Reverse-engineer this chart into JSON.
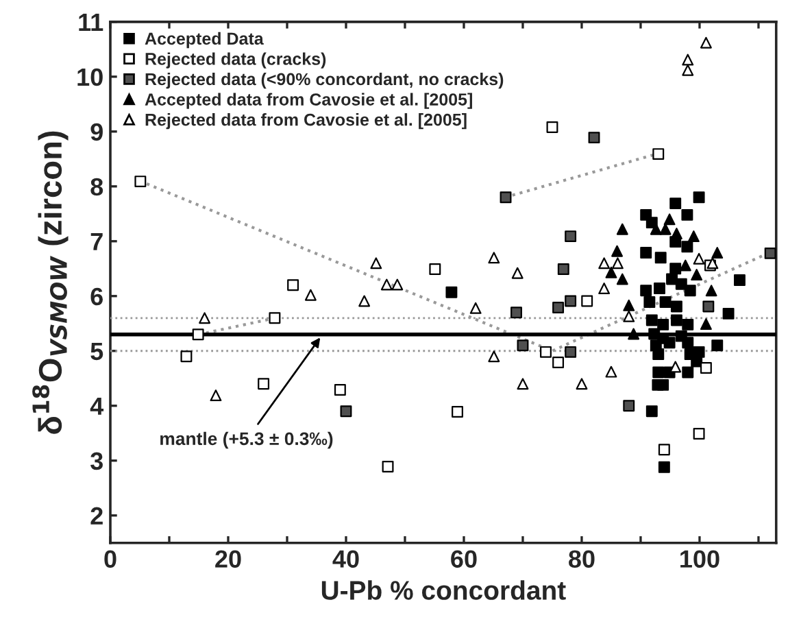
{
  "chart_data": {
    "type": "scatter",
    "xlabel": "U-Pb % concordant",
    "ylabel": "δ$^{18}$O$_{VSMOW}$ (zircon)",
    "xlim": [
      0,
      113
    ],
    "ylim": [
      1.5,
      11
    ],
    "xticks": [
      0,
      {
        "value": 10,
        "label": null
      },
      20,
      {
        "value": 30,
        "label": null
      },
      40,
      {
        "value": 50,
        "label": null
      },
      60,
      {
        "value": 70,
        "label": null
      },
      80,
      {
        "value": 90,
        "label": null
      },
      100,
      {
        "value": 110,
        "label": null
      }
    ],
    "yticks": [
      2,
      3,
      4,
      5,
      6,
      7,
      8,
      9,
      10,
      11
    ],
    "grid": false,
    "legend": "top left",
    "series": [
      {
        "name": "Accepted Data",
        "marker": "square",
        "color": "#000000",
        "x": [
          99.9,
          95.9,
          97.9,
          90.9,
          91.9,
          95.9,
          97.9,
          90.9,
          93.4,
          106.8,
          90.9,
          93.2,
          95.3,
          96.9,
          98.4,
          91.5,
          94.2,
          96.1,
          91.9,
          93.8,
          96.1,
          98.0,
          104.9,
          92.3,
          93.8,
          96.9,
          92.6,
          94.9,
          98.0,
          93.0,
          98.4,
          99.9,
          103.0,
          99.5,
          98.0,
          93.0,
          94.9,
          93.8,
          92.9,
          91.9,
          94.0,
          57.9,
          95.9
        ],
        "values": [
          7.8,
          7.69,
          7.48,
          7.48,
          7.34,
          6.99,
          6.9,
          6.79,
          6.7,
          6.29,
          6.1,
          6.14,
          6.31,
          6.22,
          6.1,
          5.89,
          5.89,
          5.81,
          5.56,
          5.48,
          5.56,
          5.48,
          5.68,
          5.31,
          5.23,
          5.27,
          5.1,
          5.15,
          5.15,
          4.94,
          4.94,
          4.98,
          5.1,
          4.81,
          4.61,
          4.61,
          4.61,
          4.38,
          4.38,
          3.9,
          2.88,
          6.07,
          6.5
        ]
      },
      {
        "name": "Rejected data (cracks)",
        "marker": "square",
        "color": "#ffffff",
        "x": [
          5.1,
          14.9,
          27.9,
          31.0,
          12.9,
          26.0,
          39.0,
          47.1,
          58.9,
          75.0,
          93.0,
          55.1,
          80.9,
          73.9,
          76.0,
          94.0,
          99.9,
          101.1,
          101.8
        ],
        "values": [
          8.09,
          5.3,
          5.6,
          6.2,
          4.9,
          4.4,
          4.29,
          2.89,
          3.89,
          9.08,
          8.59,
          6.49,
          5.91,
          4.98,
          4.79,
          3.2,
          3.49,
          4.69,
          6.56
        ]
      },
      {
        "name": "Rejected data (<90% concordant, no cracks)",
        "marker": "square",
        "color": "#505050",
        "x": [
          67.1,
          82.1,
          78.1,
          76.9,
          68.9,
          76.0,
          78.1,
          112.0,
          70.0,
          78.1,
          40.0,
          88.0,
          101.5
        ],
        "values": [
          7.8,
          8.89,
          7.09,
          6.49,
          5.7,
          5.79,
          5.91,
          6.78,
          5.1,
          4.98,
          3.9,
          4.0,
          5.81
        ]
      },
      {
        "name": "Accepted data from Cavosie et al. [2005]",
        "marker": "triangle",
        "color": "#000000",
        "x": [
          86.9,
          86.0,
          85.0,
          86.9,
          88.0,
          94.9,
          92.6,
          94.2,
          96.1,
          99.0,
          103.0,
          97.6,
          99.5,
          102.0,
          101.1,
          88.8
        ],
        "values": [
          7.22,
          6.82,
          6.43,
          6.31,
          5.83,
          7.4,
          7.22,
          7.22,
          7.14,
          7.09,
          6.79,
          6.56,
          6.39,
          6.1,
          5.49,
          5.31
        ]
      },
      {
        "name": "Rejected data from Cavosie et al. [2005]",
        "marker": "triangle",
        "color": "#ffffff",
        "x": [
          101.1,
          98.0,
          98.0,
          16.0,
          34.0,
          43.1,
          45.1,
          46.9,
          48.7,
          65.1,
          69.1,
          62.0,
          83.8,
          86.1,
          83.8,
          88.0,
          99.9,
          102.2,
          17.9,
          65.1,
          70.0,
          80.0,
          85.0,
          95.9
        ],
        "values": [
          10.62,
          10.31,
          10.12,
          5.6,
          6.02,
          5.91,
          6.6,
          6.21,
          6.21,
          6.7,
          6.42,
          5.78,
          6.6,
          6.6,
          6.14,
          5.63,
          6.68,
          6.6,
          4.19,
          4.9,
          4.4,
          4.4,
          4.62,
          4.71
        ]
      },
      {
        "type": "line",
        "line_style": "dotted",
        "color": "#999999",
        "x": [
          5,
          75,
          112
        ],
        "values": [
          8.1,
          5.0,
          6.8
        ]
      },
      {
        "type": "line",
        "line_style": "dotted",
        "color": "#999999",
        "x": [
          15,
          28
        ],
        "values": [
          5.3,
          5.6
        ]
      },
      {
        "type": "line",
        "line_style": "dotted",
        "color": "#999999",
        "x": [
          67,
          93
        ],
        "values": [
          7.8,
          8.6
        ]
      }
    ],
    "ref_lines": [
      {
        "axis": "y",
        "value": 5.3,
        "color": "#000000",
        "line_style": "solid"
      },
      {
        "axis": "y",
        "value": 5.6,
        "color": "#999999",
        "line_style": "dotted"
      },
      {
        "axis": "y",
        "value": 5.0,
        "color": "#999999",
        "line_style": "dotted"
      }
    ],
    "annotations": [
      {
        "text": "mantle (+5.3 ± 0.3‰)",
        "x": 36,
        "y": 5.3
      }
    ]
  }
}
